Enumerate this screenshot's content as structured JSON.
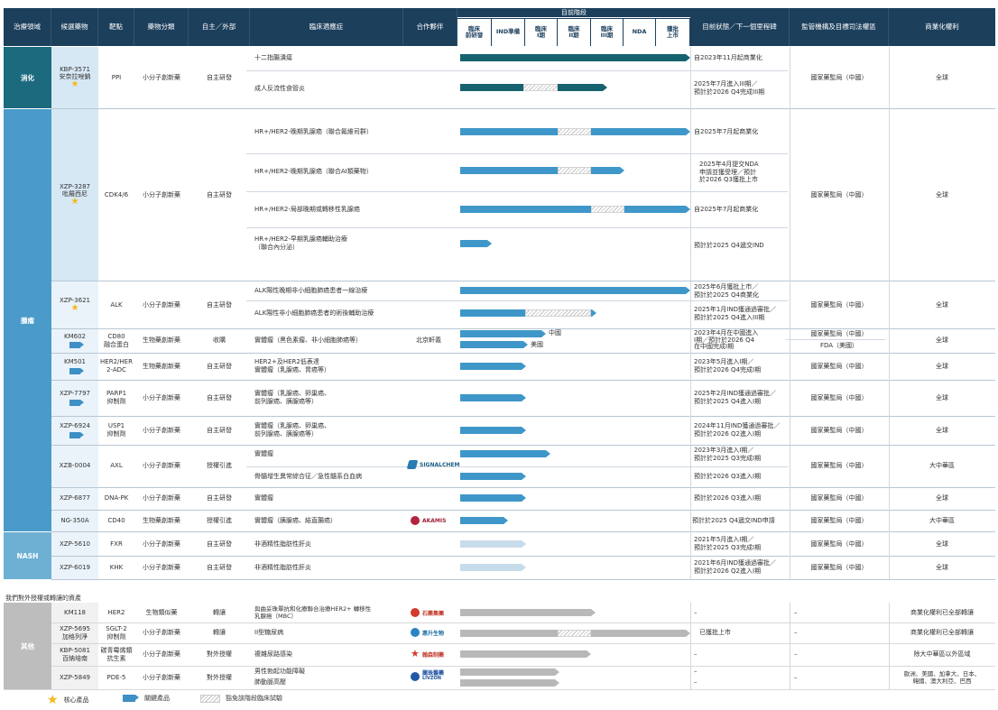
{
  "headers": {
    "area": "治療領域",
    "candidate": "候選藥物",
    "target": "靶點",
    "class": "藥物分類",
    "source": "自主／外部",
    "indication": "臨床適應症",
    "partner": "合作夥伴",
    "stage_group": "目前階段",
    "stages": [
      "臨床\n前研發",
      "IND準備",
      "臨床\nI期",
      "臨床\nII期",
      "臨床\nIII期",
      "NDA",
      "獲批\n上市"
    ],
    "status": "目前狀態／下一個里程碑",
    "regulator": "監管機構及目標司法權區",
    "rights": "商業化權利"
  },
  "areas": {
    "digestive": "消化",
    "oncology": "腫瘤",
    "nash": "NASH",
    "other": "其他"
  },
  "rows": {
    "kbp3571": {
      "name": "KBP-3571\n安奈拉唑鈉",
      "target": "PPI",
      "class": "小分子創新藥",
      "source": "自主研發",
      "ind1": "十二指腸潰瘍",
      "ind2": "成人反流性食管炎",
      "st1": "自2023年11月起商業化",
      "st2": "2025年7月進入III期／\n預計於2026 Q4完成III期",
      "reg": "國家藥監局（中國）",
      "rights": "全球"
    },
    "xzp3287": {
      "name": "XZP-3287\n吡羅西尼",
      "target": "CDK4/6",
      "class": "小分子創新藥",
      "source": "自主研發",
      "ind1": "HR+/HER2-晚期乳腺癌（聯合氟維司群）",
      "ind2": "HR+/HER2-晚期乳腺癌（聯合AI類藥物）",
      "ind3": "HR+/HER2-局部晚期或轉移性乳腺癌",
      "ind4": "HR+/HER2-早期乳腺癌輔助治療\n（聯合內分泌）",
      "st1": "自2025年7月起商業化",
      "st2": "2025年4月提交NDA\n申請並獲受理／預計\n於2026 Q3獲批上市",
      "st3": "自2025年7月起商業化",
      "st4": "預計於2025 Q4遞交IND",
      "reg": "國家藥監局（中國）",
      "rights": "全球"
    },
    "xzp3621": {
      "name": "XZP-3621",
      "target": "ALK",
      "class": "小分子創新藥",
      "source": "自主研發",
      "ind1": "ALK陽性晚期非小細胞肺癌患者一線治療",
      "ind2": "ALK陽性非小細胞肺癌患者的術後輔助治療",
      "st1": "2025年6月獲批上市／\n預計於2025 Q4商業化",
      "st2": "2025年1月IND獲通過審批／\n預計於2025 Q4進入III期",
      "reg": "國家藥監局（中國）",
      "rights": "全球"
    },
    "km602": {
      "name": "KM602",
      "target": "CD80\n融合蛋白",
      "class": "生物藥創新藥",
      "source": "收購",
      "ind": "實體瘤（黑色素瘤、非小細胞肺癌等）",
      "partner": "北京軒義",
      "label_cn": "中國",
      "label_us": "美國",
      "st": "2023年4月在中國進入\nI期／預計於2026 Q4\n在中國完成I期",
      "reg1": "國家藥監局（中國）",
      "reg2": "FDA（美國）",
      "rights": "全球"
    },
    "km501": {
      "name": "KM501",
      "target": "HER2/HER\n2-ADC",
      "class": "生物藥創新藥",
      "source": "自主研發",
      "ind": "HER2+及HER2低表達\n實體瘤（乳腺癌、胃癌等）",
      "st": "2023年5月進入I期／\n預計於2026 Q4完成I期",
      "reg": "國家藥監局（中國）",
      "rights": "全球"
    },
    "xzp7797": {
      "name": "XZP-7797",
      "target": "PARP1\n抑制劑",
      "class": "小分子創新藥",
      "source": "自主研發",
      "ind": "實體瘤（乳腺癌、卵巢癌、\n前列腺癌、胰腺癌等）",
      "st": "2025年2月IND獲通過審批／\n預計於2025 Q4進入I期",
      "reg": "國家藥監局（中國）",
      "rights": "全球"
    },
    "xzp6924": {
      "name": "XZP-6924",
      "target": "USP1\n抑制劑",
      "class": "小分子創新藥",
      "source": "自主研發",
      "ind": "實體瘤（乳腺癌、卵巢癌、\n前列腺癌、胰腺癌等）",
      "st": "2024年11月IND獲通過審批／\n預計於2026 Q2進入I期",
      "reg": "國家藥監局（中國）",
      "rights": "全球"
    },
    "xzb0004": {
      "name": "XZB-0004",
      "target": "AXL",
      "class": "小分子創新藥",
      "source": "授權引進",
      "ind1": "實體瘤",
      "ind2": "骨髓增生異常綜合征／急性髓系白血病",
      "partner": "SIGNALCHEM",
      "st1": "2023年3月進入I期／\n預計於2025 Q3完成I期",
      "st2": "預計於2026 Q3進入I期",
      "reg": "國家藥監局（中國）",
      "rights": "大中華區"
    },
    "xzp6877": {
      "name": "XZP-6877",
      "target": "DNA-PK",
      "class": "小分子創新藥",
      "source": "自主研發",
      "ind": "實體瘤",
      "st": "預計於2026 Q3進入I期",
      "reg": "國家藥監局（中國）",
      "rights": "全球"
    },
    "ng350a": {
      "name": "NG-350A",
      "target": "CD40",
      "class": "生物藥創新藥",
      "source": "授權引進",
      "ind": "實體瘤（胰腺癌、結直腸癌）",
      "partner": "AKAMIS",
      "st": "預計於2025 Q4遞交IND申請",
      "reg": "國家藥監局（中國）",
      "rights": "大中華區"
    },
    "xzp5610": {
      "name": "XZP-5610",
      "target": "FXR",
      "class": "小分子創新藥",
      "source": "自主研發",
      "ind": "非酒精性脂肪性肝炎",
      "st": "2021年5月進入I期／\n預計於2025 Q3完成I期",
      "reg": "國家藥監局（中國）",
      "rights": "全球"
    },
    "xzp6019": {
      "name": "XZP-6019",
      "target": "KHK",
      "class": "小分子創新藥",
      "source": "自主研發",
      "ind": "非酒精性脂肪性肝炎",
      "st": "2021年6月IND獲通過審批／\n預計於2026 Q2進入I期",
      "reg": "國家藥監局（中國）",
      "rights": "全球"
    },
    "section_title": "我們對外授權或轉讓的資產",
    "km118": {
      "name": "KM118",
      "target": "HER2",
      "class": "生物類似藥",
      "source": "轉讓",
      "ind": "與曲妥珠單抗和化療聯合治療HER2+ 轉移性\n乳腺癌（MBC）",
      "partner": "石藥集團",
      "st": "–",
      "reg": "–",
      "rights": "商業化權利已全部轉讓"
    },
    "xzp5695": {
      "name": "XZP-5695\n加格列淨",
      "target": "SGLT-2\n抑制劑",
      "class": "小分子創新藥",
      "source": "轉讓",
      "ind": "II型糖尿病",
      "partner": "惠升生物",
      "st": "已獲批上市",
      "reg": "–",
      "rights": "商業化權利已全部轉讓"
    },
    "kbp5081": {
      "name": "KBP-5081\n百納培南",
      "target": "碳青霉烯類\n抗生素",
      "class": "小分子創新藥",
      "source": "對外授權",
      "ind": "複雜尿路感染",
      "partner": "翰森制藥",
      "st": "–",
      "reg": "–",
      "rights": "除大中華區以外區域"
    },
    "xzp5849": {
      "name": "XZP-5849",
      "target": "PDE-5",
      "class": "小分子創新藥",
      "source": "對外授權",
      "ind1": "男性勃起功能障礙",
      "ind2": "肺動脈高壓",
      "partner": "麗珠醫藥",
      "partner_en": "LIVZON",
      "st1": "–",
      "st2": "–",
      "reg": "–",
      "rights": "歐洲、美國、加拿大、日本、\n韓國、澳大利亞、巴西"
    }
  },
  "legend": {
    "core": "核心產品",
    "key": "關鍵產品",
    "exempt": "豁免該階段臨床試驗"
  },
  "colors": {
    "header_bg": "#1c3f5c",
    "digestive": "#1b6a7e",
    "oncology": "#4a9bc9",
    "nash": "#6eb0d4",
    "other": "#bdbdbd",
    "bar_dark": "#16636f",
    "bar_med": "#3f97c9",
    "bar_pale": "#c7dcea",
    "bar_grey": "#b8b8b8",
    "star": "#f5b81b"
  }
}
